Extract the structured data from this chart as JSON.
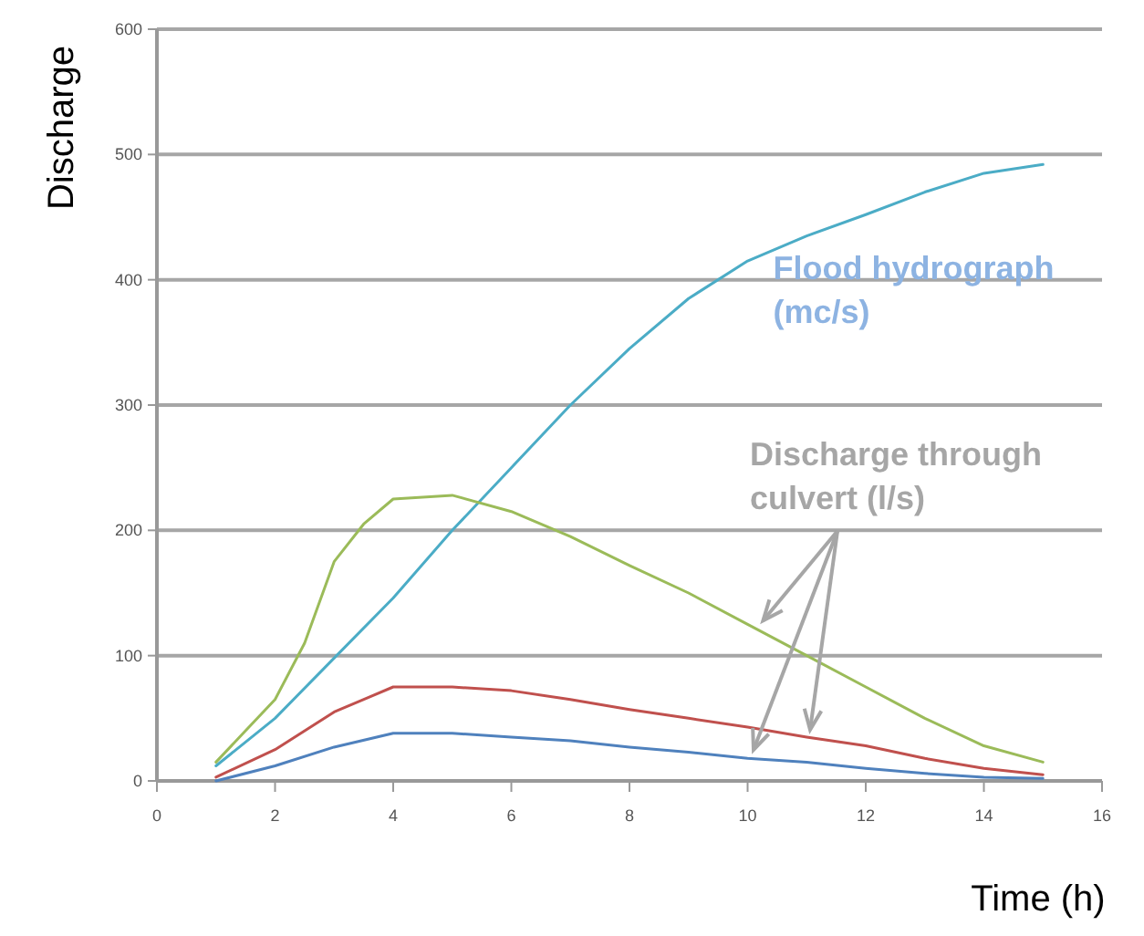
{
  "chart_data": {
    "type": "line",
    "xlabel": "Time (h)",
    "ylabel": "Discharge",
    "x": [
      1,
      2,
      3,
      4,
      5,
      6,
      7,
      8,
      9,
      10,
      11,
      12,
      13,
      14,
      15
    ],
    "series": [
      {
        "name": "Flood hydrograph (mc/s)",
        "color": "#4bacc6",
        "values": [
          12,
          50,
          98,
          146,
          200,
          250,
          300,
          345,
          385,
          415,
          435,
          452,
          470,
          485,
          492
        ]
      },
      {
        "color": "#9bbb59",
        "x": [
          1,
          1.5,
          2,
          2.5,
          3,
          3.5,
          4,
          5,
          6,
          7,
          8,
          9,
          10,
          11,
          12,
          13,
          14,
          15
        ],
        "values": [
          15,
          40,
          65,
          110,
          175,
          205,
          225,
          228,
          215,
          195,
          172,
          150,
          125,
          100,
          75,
          50,
          28,
          15
        ]
      },
      {
        "color": "#c0504d",
        "values": [
          3,
          25,
          55,
          75,
          75,
          72,
          65,
          57,
          50,
          43,
          35,
          28,
          18,
          10,
          5
        ]
      },
      {
        "color": "#4f81bd",
        "values": [
          0,
          12,
          27,
          38,
          38,
          35,
          32,
          27,
          23,
          18,
          15,
          10,
          6,
          3,
          2
        ]
      }
    ],
    "annotations": [
      {
        "text": "Discharge through culvert (l/s)",
        "x": 10.2,
        "y": 125
      }
    ],
    "xlim": [
      0,
      16
    ],
    "xticks": [
      0,
      2,
      4,
      6,
      8,
      10,
      12,
      14,
      16
    ],
    "ylim": [
      0,
      600
    ],
    "yticks": [
      0,
      100,
      200,
      300,
      400,
      500,
      600
    ],
    "grid": "y",
    "marker": "none",
    "line_style": "solid"
  }
}
